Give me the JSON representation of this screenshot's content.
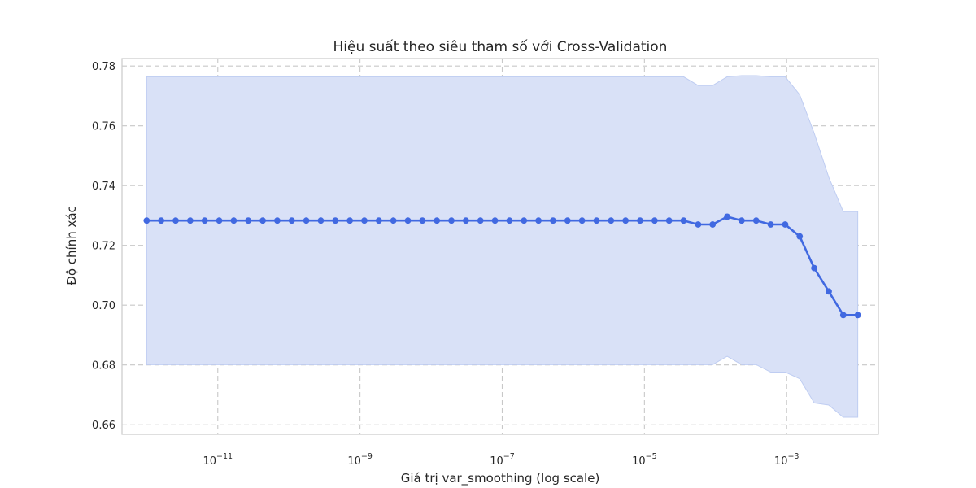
{
  "chart_data": {
    "type": "line",
    "title": "Hiệu suất theo siêu tham số với Cross-Validation",
    "xlabel": "Giá trị var_smoothing (log scale)",
    "ylabel": "Độ chính xác",
    "x_scale": "log",
    "xlim": [
      4.5e-13,
      0.0195
    ],
    "ylim": [
      0.6568,
      0.7825
    ],
    "grid": true,
    "x_ticks": [
      {
        "value": 1e-11,
        "base": "10",
        "exp": "−11"
      },
      {
        "value": 1e-09,
        "base": "10",
        "exp": "−9"
      },
      {
        "value": 1e-07,
        "base": "10",
        "exp": "−7"
      },
      {
        "value": 1e-05,
        "base": "10",
        "exp": "−5"
      },
      {
        "value": 0.001,
        "base": "10",
        "exp": "−3"
      }
    ],
    "y_ticks": [
      {
        "value": 0.66,
        "label": "0.66"
      },
      {
        "value": 0.68,
        "label": "0.68"
      },
      {
        "value": 0.7,
        "label": "0.70"
      },
      {
        "value": 0.72,
        "label": "0.72"
      },
      {
        "value": 0.74,
        "label": "0.74"
      },
      {
        "value": 0.76,
        "label": "0.76"
      },
      {
        "value": 0.78,
        "label": "0.78"
      }
    ],
    "series": [
      {
        "color": "#4169e1",
        "band_color": "#d9e1f7",
        "band_edge": "#bfcdf2",
        "x_log10_start": -12,
        "x_log10_end": -2,
        "count": 50,
        "values": [
          0.7283,
          0.7283,
          0.7283,
          0.7283,
          0.7283,
          0.7283,
          0.7283,
          0.7283,
          0.7283,
          0.7283,
          0.7283,
          0.7283,
          0.7283,
          0.7283,
          0.7283,
          0.7283,
          0.7283,
          0.7283,
          0.7283,
          0.7283,
          0.7283,
          0.7283,
          0.7283,
          0.7283,
          0.7283,
          0.7283,
          0.7283,
          0.7283,
          0.7283,
          0.7283,
          0.7283,
          0.7283,
          0.7283,
          0.7283,
          0.7283,
          0.7283,
          0.7283,
          0.7283,
          0.727,
          0.727,
          0.7296,
          0.7283,
          0.7283,
          0.727,
          0.727,
          0.723,
          0.7124,
          0.7046,
          0.6967,
          0.6967
        ],
        "upper": [
          0.7764,
          0.7764,
          0.7764,
          0.7764,
          0.7764,
          0.7764,
          0.7764,
          0.7764,
          0.7764,
          0.7764,
          0.7764,
          0.7764,
          0.7764,
          0.7764,
          0.7764,
          0.7764,
          0.7764,
          0.7764,
          0.7764,
          0.7764,
          0.7764,
          0.7764,
          0.7764,
          0.7764,
          0.7764,
          0.7764,
          0.7764,
          0.7764,
          0.7764,
          0.7764,
          0.7764,
          0.7764,
          0.7764,
          0.7764,
          0.7764,
          0.7764,
          0.7764,
          0.7764,
          0.7735,
          0.7735,
          0.7764,
          0.7768,
          0.7768,
          0.7764,
          0.7764,
          0.7704,
          0.7575,
          0.7428,
          0.7313,
          0.7313
        ],
        "lower": [
          0.6801,
          0.6801,
          0.6801,
          0.6801,
          0.6801,
          0.6801,
          0.6801,
          0.6801,
          0.6801,
          0.6801,
          0.6801,
          0.6801,
          0.6801,
          0.6801,
          0.6801,
          0.6801,
          0.6801,
          0.6801,
          0.6801,
          0.6801,
          0.6801,
          0.6801,
          0.6801,
          0.6801,
          0.6801,
          0.6801,
          0.6801,
          0.6801,
          0.6801,
          0.6801,
          0.6801,
          0.6801,
          0.6801,
          0.6801,
          0.6801,
          0.6801,
          0.6801,
          0.6801,
          0.6801,
          0.6801,
          0.6829,
          0.6801,
          0.6801,
          0.6776,
          0.6776,
          0.6754,
          0.6673,
          0.6666,
          0.6625,
          0.6625
        ]
      }
    ]
  }
}
